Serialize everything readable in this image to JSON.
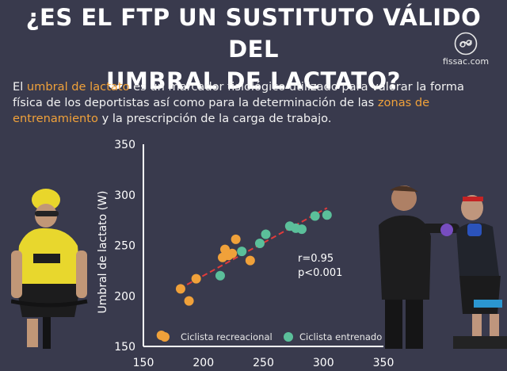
{
  "header": {
    "title_line1": "¿ES EL FTP UN SUSTITUTO VÁLIDO DEL",
    "title_line2": "UMBRAL DE LACTATO?"
  },
  "brand": {
    "name": "fissac.com",
    "logo_icon": "fissac-logo-icon"
  },
  "intro": {
    "p1": "El ",
    "h1": "umbral de lactato",
    "p2": " es un marcador fisiológico utilizado para valorar la forma física de los deportistas así como para la determinación de las ",
    "h2": "zonas de entrenamiento",
    "p3": " y la prescripción de la carga de trabajo."
  },
  "colors": {
    "background": "#393a4d",
    "highlight": "#f0a13a",
    "recreational": "#f0a13a",
    "trained": "#5bbf9a",
    "trendline": "#e23b3b",
    "axis": "#ffffff"
  },
  "chart_data": {
    "type": "scatter",
    "title": "",
    "xlabel": "",
    "ylabel": "Umbral de lactato (W)",
    "xlim": [
      150,
      350
    ],
    "ylim": [
      150,
      350
    ],
    "x_ticks": [
      150,
      200,
      250,
      300,
      350
    ],
    "y_ticks": [
      150,
      200,
      250,
      300,
      350
    ],
    "grid": false,
    "legend_position": "bottom",
    "series": [
      {
        "name": "Ciclista recreacional",
        "color": "#f0a13a",
        "points": [
          [
            165,
            161
          ],
          [
            181,
            207
          ],
          [
            188,
            195
          ],
          [
            194,
            217
          ],
          [
            216,
            238
          ],
          [
            218,
            246
          ],
          [
            221,
            240
          ],
          [
            224,
            242
          ],
          [
            227,
            256
          ],
          [
            239,
            235
          ]
        ]
      },
      {
        "name": "Ciclista entrenado",
        "color": "#5bbf9a",
        "points": [
          [
            214,
            220
          ],
          [
            232,
            244
          ],
          [
            247,
            252
          ],
          [
            252,
            261
          ],
          [
            272,
            269
          ],
          [
            277,
            267
          ],
          [
            282,
            266
          ],
          [
            293,
            279
          ],
          [
            303,
            280
          ]
        ]
      }
    ],
    "trendline": {
      "from": [
        180,
        207
      ],
      "to": [
        303,
        287
      ]
    },
    "annotations": [
      "r=0.95",
      "p<0.001"
    ]
  }
}
